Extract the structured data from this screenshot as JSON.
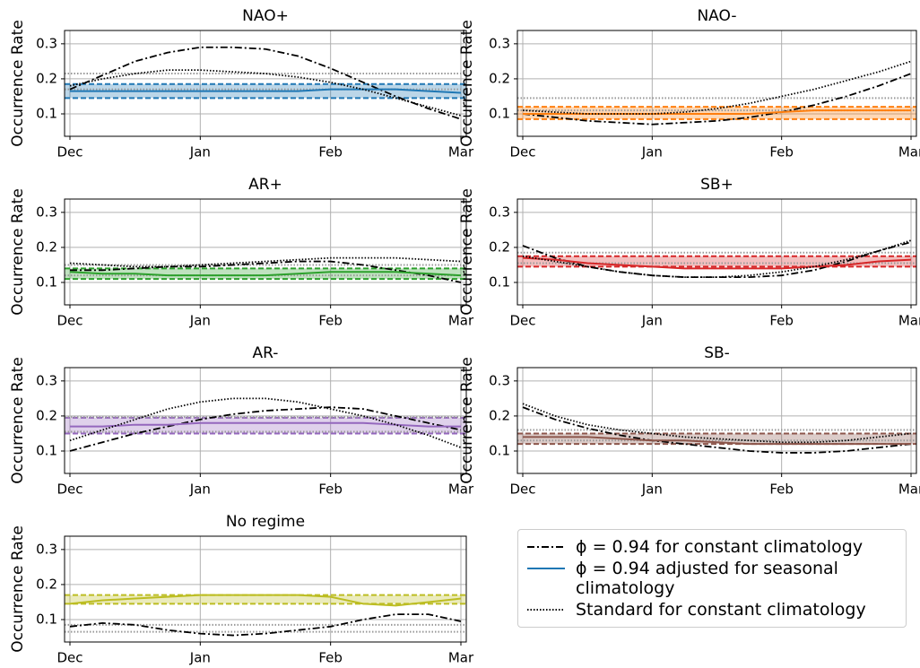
{
  "chart_data": [
    {
      "type": "line",
      "title": "NAO+",
      "ylabel": "Occurrence Rate",
      "categories": [
        "Dec",
        null,
        null,
        null,
        "Jan",
        null,
        null,
        null,
        "Feb",
        null,
        null,
        null,
        "Mar"
      ],
      "ylim": [
        0.036,
        0.338
      ],
      "yticks": [
        0.1,
        0.2,
        0.3
      ],
      "grid": true,
      "band_color": "#1f77b4",
      "series": [
        {
          "style": "dashdot",
          "color": "#000000",
          "values": [
            0.17,
            0.21,
            0.25,
            0.275,
            0.29,
            0.29,
            0.285,
            0.265,
            0.23,
            0.19,
            0.15,
            0.115,
            0.085
          ]
        },
        {
          "style": "solid",
          "color": "#1f77b4",
          "values": [
            0.165,
            0.165,
            0.165,
            0.165,
            0.165,
            0.165,
            0.165,
            0.165,
            0.17,
            0.17,
            0.17,
            0.165,
            0.16
          ]
        },
        {
          "style": "dotted",
          "color": "#000000",
          "values": [
            0.18,
            0.2,
            0.215,
            0.225,
            0.225,
            0.22,
            0.215,
            0.205,
            0.19,
            0.17,
            0.145,
            0.12,
            0.095
          ]
        }
      ],
      "hlines": [
        {
          "value": 0.145,
          "color": "#1f77b4",
          "style": "dashed"
        },
        {
          "value": 0.185,
          "color": "#1f77b4",
          "style": "dashed"
        },
        {
          "value": 0.17,
          "color": "#999999",
          "style": "dotted"
        },
        {
          "value": 0.215,
          "color": "#999999",
          "style": "dotted"
        }
      ]
    },
    {
      "type": "line",
      "title": "NAO-",
      "ylabel": "Occurrence Rate",
      "categories": [
        "Dec",
        null,
        null,
        null,
        "Jan",
        null,
        null,
        null,
        "Feb",
        null,
        null,
        null,
        "Mar"
      ],
      "ylim": [
        0.036,
        0.338
      ],
      "yticks": [
        0.1,
        0.2,
        0.3
      ],
      "grid": true,
      "band_color": "#ff7f0e",
      "series": [
        {
          "style": "dashdot",
          "color": "#000000",
          "values": [
            0.1,
            0.09,
            0.08,
            0.075,
            0.07,
            0.075,
            0.08,
            0.09,
            0.105,
            0.125,
            0.15,
            0.18,
            0.215
          ]
        },
        {
          "style": "solid",
          "color": "#ff7f0e",
          "values": [
            0.1,
            0.1,
            0.1,
            0.1,
            0.1,
            0.1,
            0.1,
            0.1,
            0.105,
            0.11,
            0.11,
            0.11,
            0.11
          ]
        },
        {
          "style": "dotted",
          "color": "#000000",
          "values": [
            0.11,
            0.105,
            0.1,
            0.1,
            0.1,
            0.105,
            0.115,
            0.13,
            0.15,
            0.17,
            0.195,
            0.22,
            0.25
          ]
        }
      ],
      "hlines": [
        {
          "value": 0.085,
          "color": "#ff7f0e",
          "style": "dashed"
        },
        {
          "value": 0.12,
          "color": "#ff7f0e",
          "style": "dashed"
        },
        {
          "value": 0.11,
          "color": "#999999",
          "style": "dotted"
        },
        {
          "value": 0.145,
          "color": "#999999",
          "style": "dotted"
        }
      ]
    },
    {
      "type": "line",
      "title": "AR+",
      "ylabel": "Occurrence Rate",
      "categories": [
        "Dec",
        null,
        null,
        null,
        "Jan",
        null,
        null,
        null,
        "Feb",
        null,
        null,
        null,
        "Mar"
      ],
      "ylim": [
        0.036,
        0.338
      ],
      "yticks": [
        0.1,
        0.2,
        0.3
      ],
      "grid": true,
      "band_color": "#2ca02c",
      "series": [
        {
          "style": "dashdot",
          "color": "#000000",
          "values": [
            0.135,
            0.135,
            0.14,
            0.145,
            0.145,
            0.15,
            0.155,
            0.16,
            0.16,
            0.15,
            0.135,
            0.12,
            0.1
          ]
        },
        {
          "style": "solid",
          "color": "#2ca02c",
          "values": [
            0.13,
            0.125,
            0.125,
            0.12,
            0.12,
            0.12,
            0.12,
            0.125,
            0.13,
            0.13,
            0.13,
            0.125,
            0.12
          ]
        },
        {
          "style": "dotted",
          "color": "#000000",
          "values": [
            0.155,
            0.15,
            0.145,
            0.145,
            0.15,
            0.155,
            0.16,
            0.165,
            0.17,
            0.17,
            0.17,
            0.165,
            0.16
          ]
        }
      ],
      "hlines": [
        {
          "value": 0.11,
          "color": "#2ca02c",
          "style": "dashed"
        },
        {
          "value": 0.14,
          "color": "#2ca02c",
          "style": "dashed"
        },
        {
          "value": 0.12,
          "color": "#999999",
          "style": "dotted"
        },
        {
          "value": 0.15,
          "color": "#999999",
          "style": "dotted"
        }
      ]
    },
    {
      "type": "line",
      "title": "SB+",
      "ylabel": "Occurrence Rate",
      "categories": [
        "Dec",
        null,
        null,
        null,
        "Jan",
        null,
        null,
        null,
        "Feb",
        null,
        null,
        null,
        "Mar"
      ],
      "ylim": [
        0.036,
        0.338
      ],
      "yticks": [
        0.1,
        0.2,
        0.3
      ],
      "grid": true,
      "band_color": "#d62728",
      "series": [
        {
          "style": "dashdot",
          "color": "#000000",
          "values": [
            0.205,
            0.17,
            0.145,
            0.13,
            0.12,
            0.115,
            0.115,
            0.115,
            0.12,
            0.135,
            0.16,
            0.19,
            0.215
          ]
        },
        {
          "style": "solid",
          "color": "#d62728",
          "values": [
            0.17,
            0.165,
            0.155,
            0.15,
            0.145,
            0.14,
            0.14,
            0.14,
            0.14,
            0.145,
            0.15,
            0.16,
            0.165
          ]
        },
        {
          "style": "dotted",
          "color": "#000000",
          "values": [
            0.175,
            0.16,
            0.145,
            0.13,
            0.12,
            0.115,
            0.115,
            0.12,
            0.13,
            0.145,
            0.165,
            0.19,
            0.22
          ]
        }
      ],
      "hlines": [
        {
          "value": 0.145,
          "color": "#d62728",
          "style": "dashed"
        },
        {
          "value": 0.175,
          "color": "#d62728",
          "style": "dashed"
        },
        {
          "value": 0.155,
          "color": "#999999",
          "style": "dotted"
        },
        {
          "value": 0.185,
          "color": "#999999",
          "style": "dotted"
        }
      ]
    },
    {
      "type": "line",
      "title": "AR-",
      "ylabel": "Occurrence Rate",
      "categories": [
        "Dec",
        null,
        null,
        null,
        "Jan",
        null,
        null,
        null,
        "Feb",
        null,
        null,
        null,
        "Mar"
      ],
      "ylim": [
        0.036,
        0.338
      ],
      "yticks": [
        0.1,
        0.2,
        0.3
      ],
      "grid": true,
      "band_color": "#9467bd",
      "series": [
        {
          "style": "dashdot",
          "color": "#000000",
          "values": [
            0.1,
            0.125,
            0.15,
            0.17,
            0.19,
            0.205,
            0.215,
            0.22,
            0.225,
            0.22,
            0.2,
            0.18,
            0.16
          ]
        },
        {
          "style": "solid",
          "color": "#9467bd",
          "values": [
            0.17,
            0.17,
            0.175,
            0.175,
            0.18,
            0.18,
            0.18,
            0.18,
            0.18,
            0.18,
            0.175,
            0.17,
            0.17
          ]
        },
        {
          "style": "dotted",
          "color": "#000000",
          "values": [
            0.13,
            0.16,
            0.19,
            0.22,
            0.24,
            0.25,
            0.25,
            0.24,
            0.22,
            0.2,
            0.175,
            0.145,
            0.11
          ]
        }
      ],
      "hlines": [
        {
          "value": 0.15,
          "color": "#9467bd",
          "style": "dashed"
        },
        {
          "value": 0.195,
          "color": "#9467bd",
          "style": "dashed"
        },
        {
          "value": 0.155,
          "color": "#999999",
          "style": "dotted"
        },
        {
          "value": 0.197,
          "color": "#999999",
          "style": "dotted"
        }
      ]
    },
    {
      "type": "line",
      "title": "SB-",
      "ylabel": "Occurrence Rate",
      "categories": [
        "Dec",
        null,
        null,
        null,
        "Jan",
        null,
        null,
        null,
        "Feb",
        null,
        null,
        null,
        "Mar"
      ],
      "ylim": [
        0.036,
        0.338
      ],
      "yticks": [
        0.1,
        0.2,
        0.3
      ],
      "grid": true,
      "band_color": "#8c564b",
      "series": [
        {
          "style": "dashdot",
          "color": "#000000",
          "values": [
            0.225,
            0.19,
            0.165,
            0.145,
            0.13,
            0.12,
            0.11,
            0.1,
            0.095,
            0.095,
            0.1,
            0.11,
            0.12
          ]
        },
        {
          "style": "solid",
          "color": "#8c564b",
          "values": [
            0.14,
            0.14,
            0.14,
            0.135,
            0.13,
            0.13,
            0.125,
            0.12,
            0.12,
            0.12,
            0.12,
            0.12,
            0.12
          ]
        },
        {
          "style": "dotted",
          "color": "#000000",
          "values": [
            0.235,
            0.2,
            0.175,
            0.16,
            0.15,
            0.14,
            0.135,
            0.13,
            0.125,
            0.125,
            0.13,
            0.14,
            0.15
          ]
        }
      ],
      "hlines": [
        {
          "value": 0.12,
          "color": "#8c564b",
          "style": "dashed"
        },
        {
          "value": 0.15,
          "color": "#8c564b",
          "style": "dashed"
        },
        {
          "value": 0.13,
          "color": "#999999",
          "style": "dotted"
        },
        {
          "value": 0.16,
          "color": "#999999",
          "style": "dotted"
        }
      ]
    },
    {
      "type": "line",
      "title": "No regime",
      "ylabel": "Occurrence Rate",
      "categories": [
        "Dec",
        null,
        null,
        null,
        "Jan",
        null,
        null,
        null,
        "Feb",
        null,
        null,
        null,
        "Mar"
      ],
      "ylim": [
        0.036,
        0.338
      ],
      "yticks": [
        0.1,
        0.2,
        0.3
      ],
      "grid": true,
      "band_color": "#bcbd22",
      "series": [
        {
          "style": "dashdot",
          "color": "#000000",
          "values": [
            0.08,
            0.09,
            0.085,
            0.07,
            0.06,
            0.055,
            0.06,
            0.07,
            0.08,
            0.1,
            0.115,
            0.115,
            0.095
          ]
        },
        {
          "style": "solid",
          "color": "#bcbd22",
          "values": [
            0.145,
            0.155,
            0.16,
            0.165,
            0.17,
            0.17,
            0.17,
            0.17,
            0.165,
            0.145,
            0.14,
            0.15,
            0.16
          ]
        }
      ],
      "hlines": [
        {
          "value": 0.145,
          "color": "#bcbd22",
          "style": "dashed"
        },
        {
          "value": 0.17,
          "color": "#bcbd22",
          "style": "dashed"
        },
        {
          "value": 0.065,
          "color": "#999999",
          "style": "dotted"
        },
        {
          "value": 0.085,
          "color": "#999999",
          "style": "dotted"
        }
      ]
    }
  ],
  "legend": [
    {
      "label": "ϕ = 0.94 for constant climatology",
      "style": "dashdot",
      "color": "#000000"
    },
    {
      "label": "ϕ = 0.94 adjusted for seasonal climatology",
      "style": "solid",
      "color": "#1f77b4"
    },
    {
      "label": "Standard for constant climatology",
      "style": "dotted",
      "color": "#000000"
    }
  ]
}
